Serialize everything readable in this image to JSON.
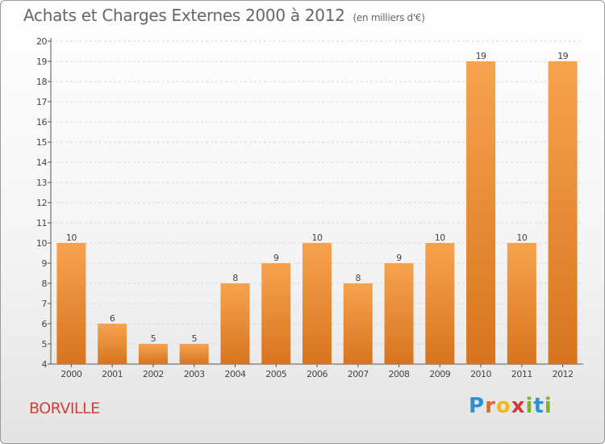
{
  "title": "Achats et Charges Externes 2000 à 2012",
  "subtitle": "(en milliers d'€)",
  "commune": "BORVILLE",
  "brand": {
    "letters": [
      {
        "ch": "P",
        "color": "#2f8fd0"
      },
      {
        "ch": "r",
        "color": "#e06a2b"
      },
      {
        "ch": "o",
        "color": "#f0b91a"
      },
      {
        "ch": "x",
        "color": "#d33a3a"
      },
      {
        "ch": "i",
        "color": "#7cb32d"
      },
      {
        "ch": "t",
        "color": "#2f8fd0"
      },
      {
        "ch": "i",
        "color": "#7cb32d"
      }
    ]
  },
  "colors": {
    "bar_light": "#f7a34e",
    "bar_dark": "#d8741f",
    "axis": "#555555",
    "grid": "#d9d9d9"
  },
  "chart_data": {
    "type": "bar",
    "categories": [
      "2000",
      "2001",
      "2002",
      "2003",
      "2004",
      "2005",
      "2006",
      "2007",
      "2008",
      "2009",
      "2010",
      "2011",
      "2012"
    ],
    "values": [
      10,
      6,
      5,
      5,
      8,
      9,
      10,
      8,
      9,
      10,
      19,
      10,
      19
    ],
    "ylim": [
      4,
      20
    ],
    "yticks": [
      4,
      5,
      6,
      7,
      8,
      9,
      10,
      11,
      12,
      13,
      14,
      15,
      16,
      17,
      18,
      19,
      20
    ],
    "grid": true,
    "data_labels": true
  }
}
